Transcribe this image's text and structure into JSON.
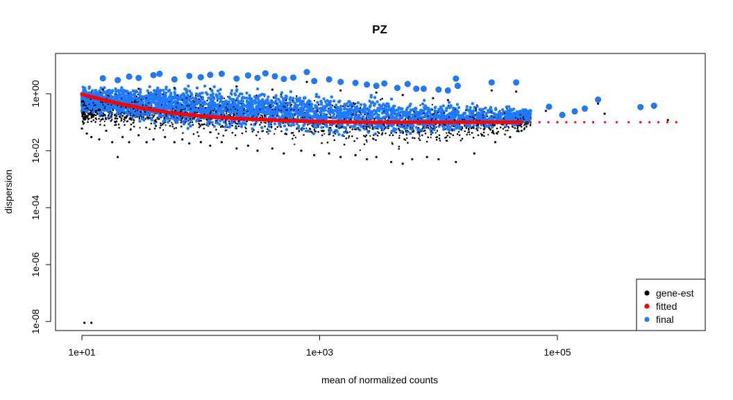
{
  "chart_data": {
    "type": "scatter",
    "title": "PZ",
    "xlabel": "mean of normalized counts",
    "ylabel": "dispersion",
    "x_scale": "log10",
    "y_scale": "log10",
    "xlim": [
      8.3,
      1300000
    ],
    "ylim": [
      1e-08,
      20
    ],
    "x_ticks": [
      {
        "value": 10,
        "label": "1e+01"
      },
      {
        "value": 1000,
        "label": "1e+03"
      },
      {
        "value": 100000,
        "label": "1e+05"
      }
    ],
    "y_ticks": [
      {
        "value": 1,
        "label": "1e+00"
      },
      {
        "value": 0.01,
        "label": "1e-02"
      },
      {
        "value": 0.0001,
        "label": "1e-04"
      },
      {
        "value": 1e-06,
        "label": "1e-06"
      },
      {
        "value": 1e-08,
        "label": "1e-08"
      }
    ],
    "grid": false,
    "legend_position": "bottom-right",
    "series": [
      {
        "name": "gene-est",
        "color": "#000000",
        "points": [
          [
            10.5,
            9e-09
          ],
          [
            12.0,
            9e-09
          ],
          [
            10,
            0.06
          ],
          [
            11,
            0.04
          ],
          [
            12,
            0.03
          ],
          [
            14,
            0.025
          ],
          [
            16,
            0.05
          ],
          [
            18,
            0.02
          ],
          [
            20,
            0.006
          ],
          [
            22,
            0.03
          ],
          [
            25,
            0.02
          ],
          [
            30,
            0.035
          ],
          [
            35,
            0.02
          ],
          [
            40,
            0.025
          ],
          [
            50,
            0.03
          ],
          [
            60,
            0.02
          ],
          [
            70,
            0.025
          ],
          [
            80,
            0.018
          ],
          [
            100,
            0.02
          ],
          [
            120,
            0.015
          ],
          [
            150,
            0.02
          ],
          [
            200,
            0.012
          ],
          [
            250,
            0.015
          ],
          [
            300,
            0.01
          ],
          [
            400,
            0.012
          ],
          [
            500,
            0.008
          ],
          [
            700,
            0.01
          ],
          [
            900,
            0.007
          ],
          [
            1200,
            0.008
          ],
          [
            1500,
            0.006
          ],
          [
            2000,
            0.007
          ],
          [
            2500,
            0.005
          ],
          [
            3000,
            0.006
          ],
          [
            4000,
            0.004
          ],
          [
            5000,
            0.0035
          ],
          [
            6000,
            0.005
          ],
          [
            8000,
            0.006
          ],
          [
            10000,
            0.005
          ],
          [
            14000,
            0.004
          ],
          [
            20000,
            0.008
          ],
          [
            30000,
            0.02
          ],
          [
            40000,
            0.03
          ],
          [
            50000,
            0.05
          ],
          [
            15,
            1.4
          ],
          [
            30,
            1.5
          ],
          [
            60,
            1.6
          ],
          [
            120,
            1.5
          ],
          [
            200,
            1.8
          ],
          [
            400,
            1.4
          ],
          [
            780,
            2.6
          ],
          [
            1500,
            1.3
          ],
          [
            3000,
            1.1
          ],
          [
            5000,
            0.9
          ],
          [
            9000,
            0.7
          ],
          [
            12000,
            0.6
          ],
          [
            14000,
            1.8
          ],
          [
            28000,
            1.3
          ],
          [
            45000,
            1.2
          ],
          [
            80000,
            0.25
          ],
          [
            110000,
            0.16
          ],
          [
            140000,
            0.22
          ],
          [
            170000,
            0.28
          ],
          [
            220000,
            0.45
          ],
          [
            250000,
            0.2
          ],
          [
            500000,
            0.33
          ],
          [
            650000,
            0.32
          ],
          [
            850000,
            0.12
          ]
        ]
      },
      {
        "name": "fitted",
        "color": "#ff0000",
        "points": [
          [
            10,
            0.95
          ],
          [
            15,
            0.62
          ],
          [
            20,
            0.46
          ],
          [
            30,
            0.33
          ],
          [
            50,
            0.23
          ],
          [
            80,
            0.18
          ],
          [
            100,
            0.165
          ],
          [
            200,
            0.135
          ],
          [
            300,
            0.125
          ],
          [
            500,
            0.115
          ],
          [
            700,
            0.11
          ],
          [
            1000,
            0.105
          ],
          [
            2000,
            0.1
          ],
          [
            5000,
            0.1
          ],
          [
            10000,
            0.1
          ],
          [
            20000,
            0.1
          ],
          [
            50000,
            0.1
          ],
          [
            100000,
            0.1
          ],
          [
            200000,
            0.1
          ],
          [
            500000,
            0.1
          ],
          [
            1000000,
            0.1
          ]
        ]
      },
      {
        "name": "final",
        "color": "#1e7bff",
        "points": [
          [
            15,
            3.5
          ],
          [
            20,
            3.0
          ],
          [
            25,
            4.0
          ],
          [
            30,
            3.6
          ],
          [
            40,
            4.5
          ],
          [
            45,
            5.0
          ],
          [
            60,
            3.2
          ],
          [
            80,
            4.2
          ],
          [
            100,
            3.8
          ],
          [
            120,
            4.6
          ],
          [
            150,
            5.0
          ],
          [
            200,
            3.4
          ],
          [
            250,
            4.4
          ],
          [
            300,
            3.6
          ],
          [
            350,
            5.2
          ],
          [
            420,
            4.1
          ],
          [
            500,
            3.3
          ],
          [
            600,
            3.7
          ],
          [
            780,
            5.8
          ],
          [
            900,
            2.8
          ],
          [
            1200,
            3.2
          ],
          [
            1500,
            2.6
          ],
          [
            2000,
            2.4
          ],
          [
            2500,
            2.1
          ],
          [
            3000,
            1.9
          ],
          [
            3500,
            2.3
          ],
          [
            4500,
            1.6
          ],
          [
            5500,
            2.2
          ],
          [
            6500,
            1.5
          ],
          [
            7500,
            1.5
          ],
          [
            10000,
            1.4
          ],
          [
            12000,
            1.3
          ],
          [
            14000,
            3.4
          ],
          [
            14500,
            1.9
          ],
          [
            28000,
            2.5
          ],
          [
            45000,
            2.5
          ],
          [
            220000,
            0.62
          ],
          [
            650000,
            0.38
          ],
          [
            500000,
            0.34
          ],
          [
            170000,
            0.3
          ],
          [
            140000,
            0.24
          ],
          [
            110000,
            0.18
          ],
          [
            85000,
            0.35
          ],
          [
            55000,
            0.22
          ]
        ]
      }
    ],
    "cloud_bands": {
      "final_upper": [
        [
          10,
          2.0
        ],
        [
          20,
          2.5
        ],
        [
          50,
          2.6
        ],
        [
          100,
          2.3
        ],
        [
          300,
          2.0
        ],
        [
          1000,
          1.4
        ],
        [
          3000,
          1.1
        ],
        [
          10000,
          0.7
        ],
        [
          30000,
          0.5
        ],
        [
          60000,
          0.35
        ]
      ],
      "final_lower": [
        [
          10,
          0.16
        ],
        [
          20,
          0.09
        ],
        [
          50,
          0.06
        ],
        [
          100,
          0.05
        ],
        [
          300,
          0.04
        ],
        [
          1000,
          0.03
        ],
        [
          3000,
          0.025
        ],
        [
          10000,
          0.03
        ],
        [
          30000,
          0.05
        ],
        [
          60000,
          0.07
        ]
      ],
      "gene_est_upper": [
        [
          10,
          1.2
        ],
        [
          20,
          1.8
        ],
        [
          50,
          2.0
        ],
        [
          100,
          1.8
        ],
        [
          300,
          1.5
        ],
        [
          1000,
          1.1
        ],
        [
          3000,
          0.9
        ],
        [
          10000,
          0.6
        ],
        [
          30000,
          0.45
        ],
        [
          60000,
          0.3
        ]
      ],
      "gene_est_lower": [
        [
          10,
          0.07
        ],
        [
          20,
          0.04
        ],
        [
          50,
          0.03
        ],
        [
          100,
          0.025
        ],
        [
          300,
          0.018
        ],
        [
          1000,
          0.012
        ],
        [
          3000,
          0.008
        ],
        [
          10000,
          0.01
        ],
        [
          30000,
          0.02
        ],
        [
          60000,
          0.04
        ]
      ]
    }
  },
  "legend": {
    "items": [
      {
        "label": "gene-est",
        "color": "#000000"
      },
      {
        "label": "fitted",
        "color": "#ff0000"
      },
      {
        "label": "final",
        "color": "#1e7bff"
      }
    ]
  }
}
